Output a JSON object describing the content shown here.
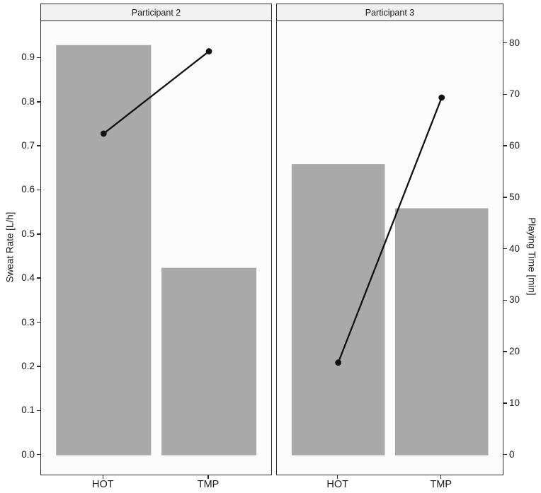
{
  "chart_data": {
    "type": "bar",
    "subtype": "faceted dual-axis bar chart with overlaid line+point series",
    "grid": false,
    "legend": "none",
    "x_axis": {
      "categories": [
        "HOT",
        "TMP"
      ]
    },
    "left_axis": {
      "label": "Sweat Rate [L/h]",
      "tick_labels": [
        "0.0",
        "0.1",
        "0.2",
        "0.3",
        "0.4",
        "0.5",
        "0.6",
        "0.7",
        "0.8",
        "0.9"
      ],
      "tick_values": [
        0,
        0.1,
        0.2,
        0.3,
        0.4,
        0.5,
        0.6,
        0.7,
        0.8,
        0.9
      ],
      "range": [
        -0.047,
        0.984
      ]
    },
    "right_axis": {
      "label": "Playing Time [min]",
      "tick_labels": [
        "0",
        "10",
        "20",
        "30",
        "40",
        "50",
        "60",
        "70",
        "80"
      ],
      "tick_values": [
        0,
        10,
        20,
        30,
        40,
        50,
        60,
        70,
        80
      ],
      "range": [
        -4.05,
        84.35
      ]
    },
    "facets": [
      {
        "title": "Participant 2",
        "categories": [
          "HOT",
          "TMP"
        ],
        "series": [
          {
            "name": "Sweat Rate [L/h]",
            "type": "bar",
            "values": [
              0.93,
              0.425
            ]
          },
          {
            "name": "Playing Time [min]",
            "type": "line",
            "values": [
              62.5,
              78.5
            ]
          }
        ]
      },
      {
        "title": "Participant 3",
        "categories": [
          "HOT",
          "TMP"
        ],
        "series": [
          {
            "name": "Sweat Rate [L/h]",
            "type": "bar",
            "values": [
              0.66,
              0.56
            ]
          },
          {
            "name": "Playing Time [min]",
            "type": "line",
            "values": [
              18,
              69.5
            ]
          }
        ]
      }
    ],
    "colors": {
      "bar_fill": "#a9a9a9",
      "line": "#111111",
      "point": "#111111",
      "panel_background": "#fcfcfc",
      "strip_background": "#f1f1f1",
      "border": "#2b2b2b",
      "text": "#1a1a1a"
    }
  }
}
